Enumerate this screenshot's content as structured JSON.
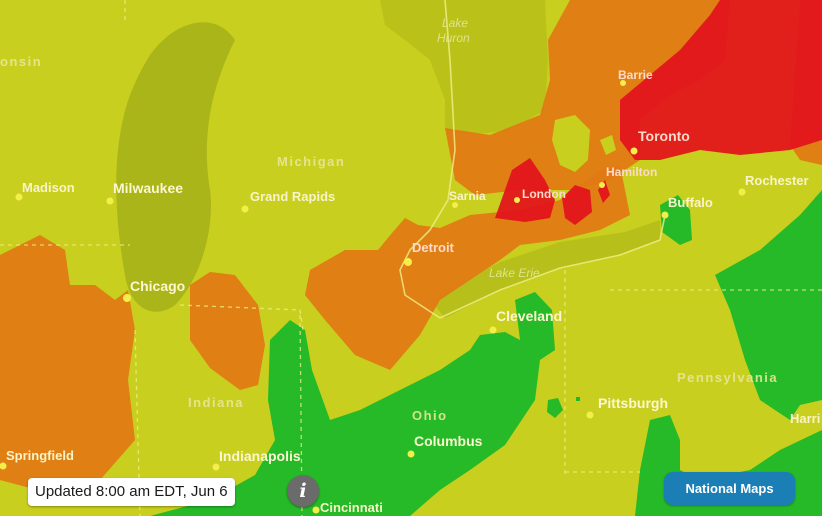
{
  "map": {
    "colors": {
      "good": "#1eb82a",
      "moderate": "#c9cf1e",
      "usg": "#e07a14",
      "unhealthy": "#e3151b",
      "lake": "#a9b319",
      "border": "#f0ef8a"
    },
    "cities": {
      "madison": "Madison",
      "milwaukee": "Milwaukee",
      "grand_rapids": "Grand Rapids",
      "chicago": "Chicago",
      "detroit": "Detroit",
      "sarnia": "Sarnia",
      "london": "London",
      "hamilton": "Hamilton",
      "toronto": "Toronto",
      "barrie": "Barrie",
      "buffalo": "Buffalo",
      "rochester": "Rochester",
      "cleveland": "Cleveland",
      "pittsburgh": "Pittsburgh",
      "columbus": "Columbus",
      "indianapolis": "Indianapolis",
      "springfield": "Springfield",
      "cincinnati": "Cincinnati",
      "harrisburg_partial": "Harri"
    },
    "states": {
      "wisconsin_partial": "onsin",
      "michigan": "Michigan",
      "indiana": "Indiana",
      "ohio": "Ohio",
      "pennsylvania": "Pennsylvania"
    },
    "waters": {
      "lake_huron_1": "Lake",
      "lake_huron_2": "Huron",
      "lake_erie": "Lake Erie"
    }
  },
  "overlay": {
    "updated_text": "Updated 8:00 am EDT, Jun 6",
    "info_label": "i",
    "info_icon": "info-icon",
    "national_button": "National Maps"
  }
}
